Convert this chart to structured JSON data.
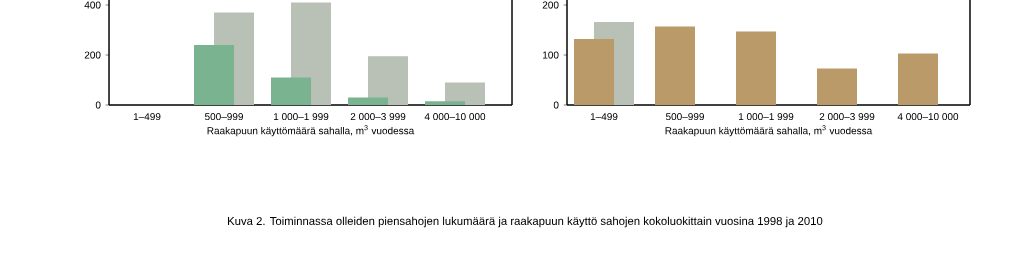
{
  "chart_data": [
    {
      "type": "bar",
      "xlabel": "Raakapuun käyttömäärä sahalla, m$^{3}$ vuodessa",
      "categories": [
        "1–499",
        "500–999",
        "1 000–1 999",
        "2 000–3 999",
        "4 000–10 000"
      ],
      "series": [
        {
          "color": "#7ab38f",
          "values": [
            null,
            240,
            110,
            30,
            15
          ]
        },
        {
          "color": "#b9c0b6",
          "values": [
            null,
            370,
            410,
            195,
            90
          ]
        }
      ],
      "ylim": [
        0,
        420
      ],
      "yticks": [
        0,
        200,
        400
      ],
      "annotations": [
        "Kuva 2. Toiminnassa olleiden piensahojen lukumäärä ja raakapuun käyttö sahojen kokoluokittain vuosina 1998 ja 2010"
      ]
    },
    {
      "type": "bar",
      "xlabel": "Raakapuun käyttömäärä sahalla, m$^{3}$ vuodessa",
      "categories": [
        "1–499",
        "500–999",
        "1 000–1 999",
        "2 000–3 999",
        "4 000–10 000"
      ],
      "series": [
        {
          "color": "#b99a68",
          "values": [
            132,
            157,
            147,
            73,
            103
          ]
        },
        {
          "color": "#b9c0b6",
          "values": [
            166,
            null,
            null,
            null,
            null
          ]
        }
      ],
      "ylim": [
        0,
        210
      ],
      "yticks": [
        0,
        100,
        200
      ]
    }
  ]
}
